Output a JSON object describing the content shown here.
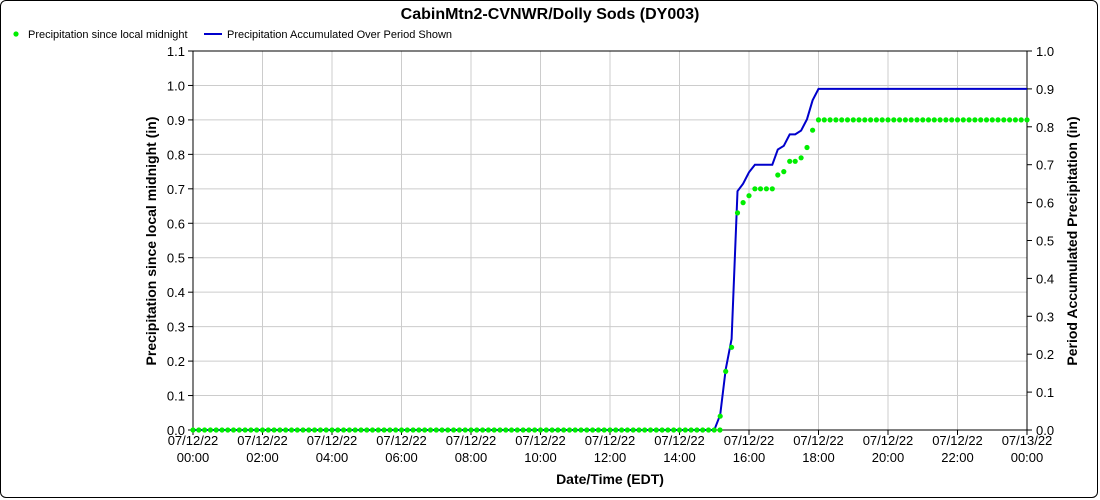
{
  "chart_data": {
    "type": "line",
    "title": "CabinMtn2-CVNWR/Dolly Sods (DY003)",
    "xlabel": "Date/Time (EDT)",
    "ylabel_left": "Precipitation since local midnight (in)",
    "ylabel_right": "Period Accumulated Precipitation (in)",
    "ylim_left": [
      0,
      1.1
    ],
    "ylim_right": [
      0,
      1.0
    ],
    "xlim_hours": [
      0,
      24
    ],
    "grid": true,
    "legend_position": "top-left",
    "y_ticks_left": [
      "0.0",
      "0.1",
      "0.2",
      "0.3",
      "0.4",
      "0.5",
      "0.6",
      "0.7",
      "0.8",
      "0.9",
      "1.0",
      "1.1"
    ],
    "y_ticks_right": [
      "0.0",
      "0.1",
      "0.2",
      "0.3",
      "0.4",
      "0.5",
      "0.6",
      "0.7",
      "0.8",
      "0.9",
      "1.0"
    ],
    "x_ticks": [
      {
        "hour": 0,
        "date": "07/12/22",
        "time": "00:00"
      },
      {
        "hour": 2,
        "date": "07/12/22",
        "time": "02:00"
      },
      {
        "hour": 4,
        "date": "07/12/22",
        "time": "04:00"
      },
      {
        "hour": 6,
        "date": "07/12/22",
        "time": "06:00"
      },
      {
        "hour": 8,
        "date": "07/12/22",
        "time": "08:00"
      },
      {
        "hour": 10,
        "date": "07/12/22",
        "time": "10:00"
      },
      {
        "hour": 12,
        "date": "07/12/22",
        "time": "12:00"
      },
      {
        "hour": 14,
        "date": "07/12/22",
        "time": "14:00"
      },
      {
        "hour": 16,
        "date": "07/12/22",
        "time": "16:00"
      },
      {
        "hour": 18,
        "date": "07/12/22",
        "time": "18:00"
      },
      {
        "hour": 20,
        "date": "07/12/22",
        "time": "20:00"
      },
      {
        "hour": 22,
        "date": "07/12/22",
        "time": "22:00"
      },
      {
        "hour": 24,
        "date": "07/13/22",
        "time": "00:00"
      }
    ],
    "series": [
      {
        "name": "Precipitation since local midnight",
        "axis": "left",
        "style": "points",
        "color": "#00ee00",
        "points": [
          [
            15.17,
            0.04
          ],
          [
            15.33,
            0.17
          ],
          [
            15.5,
            0.24
          ],
          [
            15.67,
            0.63
          ],
          [
            15.83,
            0.66
          ],
          [
            16.0,
            0.68
          ],
          [
            16.17,
            0.7
          ],
          [
            16.33,
            0.7
          ],
          [
            16.5,
            0.7
          ],
          [
            16.67,
            0.7
          ],
          [
            16.83,
            0.74
          ],
          [
            17.0,
            0.75
          ],
          [
            17.17,
            0.78
          ],
          [
            17.33,
            0.78
          ],
          [
            17.5,
            0.79
          ],
          [
            17.67,
            0.82
          ],
          [
            17.83,
            0.87
          ],
          [
            18.0,
            0.9
          ]
        ],
        "baseline_before": 0.0,
        "plateau_after": 0.9
      },
      {
        "name": "Precipitation Accumulated Over Period Shown",
        "axis": "right",
        "style": "line",
        "color": "#0000cc",
        "points": [
          [
            0,
            0.0
          ],
          [
            15.0,
            0.0
          ],
          [
            15.17,
            0.04
          ],
          [
            15.33,
            0.16
          ],
          [
            15.5,
            0.24
          ],
          [
            15.67,
            0.63
          ],
          [
            15.83,
            0.65
          ],
          [
            16.0,
            0.68
          ],
          [
            16.17,
            0.7
          ],
          [
            16.5,
            0.7
          ],
          [
            16.67,
            0.7
          ],
          [
            16.83,
            0.74
          ],
          [
            17.0,
            0.75
          ],
          [
            17.17,
            0.78
          ],
          [
            17.33,
            0.78
          ],
          [
            17.5,
            0.79
          ],
          [
            17.67,
            0.82
          ],
          [
            17.83,
            0.87
          ],
          [
            18.0,
            0.9
          ],
          [
            24.0,
            0.9
          ]
        ]
      }
    ]
  }
}
